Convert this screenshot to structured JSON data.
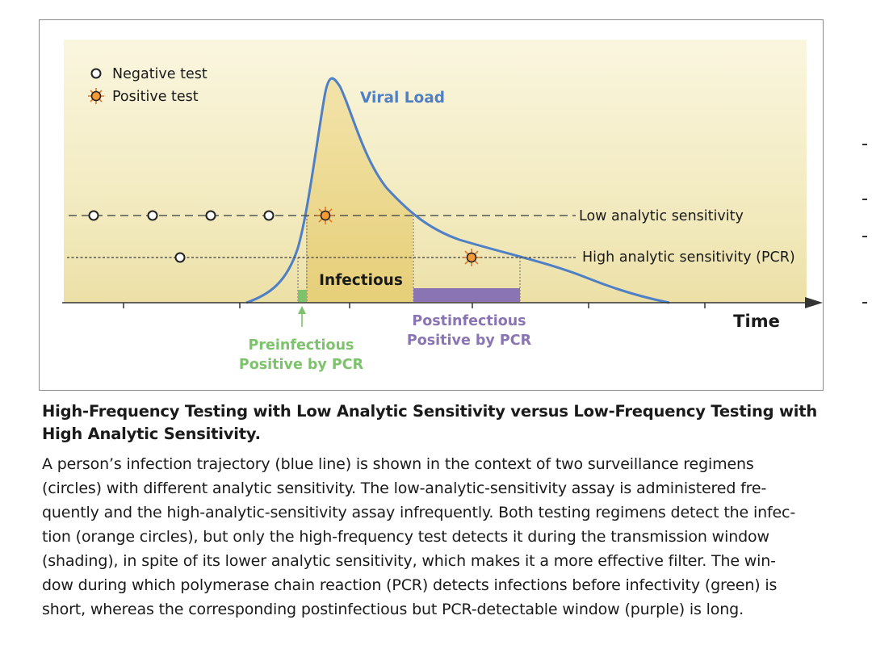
{
  "legend": {
    "negative_label": "Negative test",
    "positive_label": "Positive test"
  },
  "curve_label": "Viral Load",
  "thresholds": {
    "low_label": "Low analytic sensitivity",
    "high_label": "High analytic sensitivity (PCR)"
  },
  "regions": {
    "infectious_label": "Infectious",
    "postinfectious_line1": "Postinfectious",
    "postinfectious_line2": "Positive by PCR",
    "preinfectious_line1": "Preinfectious",
    "preinfectious_line2": "Positive by PCR"
  },
  "axis": {
    "x_label": "Time"
  },
  "colors": {
    "curve": "#4f7fc4",
    "positive": "#f0922a",
    "preinfectious": "#7cc36b",
    "postinfectious": "#8a74b3",
    "background": "#f3ecc2",
    "shading": "#ecd382"
  },
  "caption": {
    "title": "High-Frequency Testing with Low Analytic Sensitivity versus Low-Frequency Testing with High Analytic Sensitivity.",
    "body_lines": [
      "A person’s infection trajectory (blue line) is shown in the context of two surveillance regimens",
      "(circles) with different analytic sensitivity. The low-analytic-sensitivity assay is administered fre-",
      "quently and the high-analytic-sensitivity assay infrequently. Both testing regimens detect the infec-",
      "tion (orange circles), but only the high-frequency test detects it during the transmission window",
      "(shading), in spite of its lower analytic sensitivity, which makes it a more effective filter. The win-",
      "dow during which polymerase chain reaction (PCR) detects infections before infectivity (green) is",
      "short, whereas the corresponding postinfectious but PCR-detectable window (purple) is long."
    ]
  }
}
